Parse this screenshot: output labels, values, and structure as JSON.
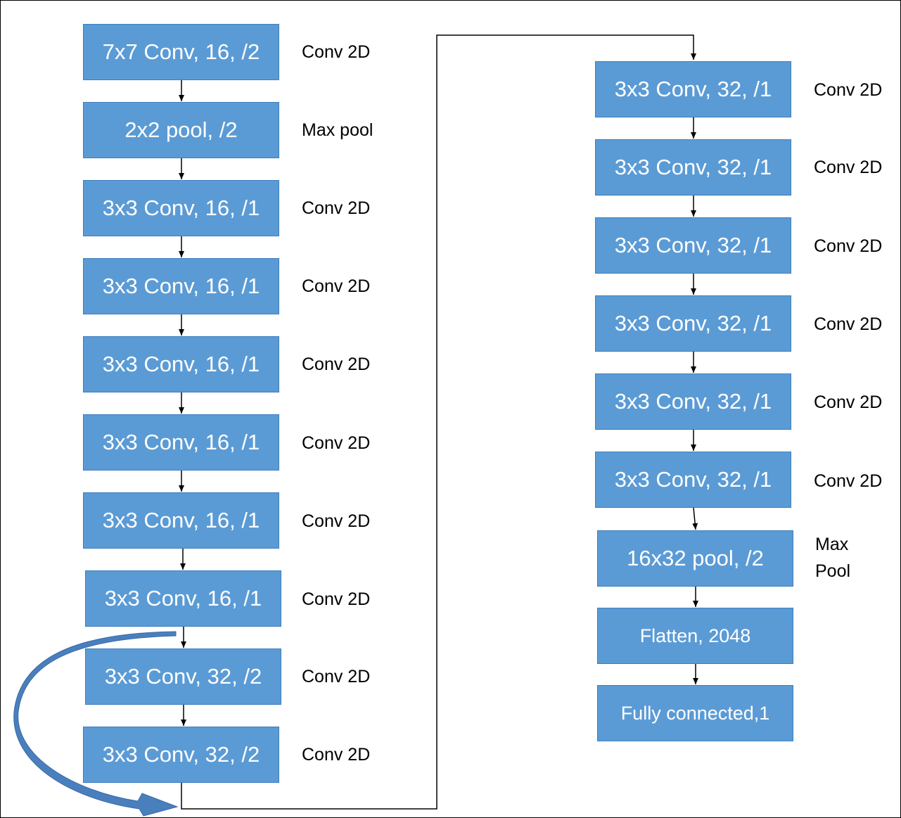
{
  "colors": {
    "block_fill": "#5b9bd5",
    "block_border": "#3d7dbf",
    "text_on_block": "#ffffff",
    "connector": "#000000",
    "skip_arrow": "#4a7fbd"
  },
  "left_column": [
    {
      "label": "7x7 Conv, 16, /2",
      "op": "Conv 2D"
    },
    {
      "label": "2x2 pool, /2",
      "op": "Max pool"
    },
    {
      "label": "3x3 Conv, 16, /1",
      "op": "Conv 2D"
    },
    {
      "label": "3x3 Conv, 16, /1",
      "op": "Conv 2D"
    },
    {
      "label": "3x3 Conv, 16, /1",
      "op": "Conv 2D"
    },
    {
      "label": "3x3 Conv, 16, /1",
      "op": "Conv 2D"
    },
    {
      "label": "3x3 Conv, 16, /1",
      "op": "Conv 2D"
    },
    {
      "label": "3x3 Conv, 16, /1",
      "op": "Conv 2D"
    },
    {
      "label": "3x3 Conv, 32, /2",
      "op": "Conv 2D"
    },
    {
      "label": "3x3 Conv, 32, /2",
      "op": "Conv 2D"
    }
  ],
  "right_column": [
    {
      "label": "3x3 Conv, 32, /1",
      "op": "Conv 2D"
    },
    {
      "label": "3x3 Conv, 32, /1",
      "op": "Conv 2D"
    },
    {
      "label": "3x3 Conv, 32, /1",
      "op": "Conv 2D"
    },
    {
      "label": "3x3 Conv, 32, /1",
      "op": "Conv 2D"
    },
    {
      "label": "3x3 Conv, 32, /1",
      "op": "Conv 2D"
    },
    {
      "label": "3x3 Conv, 32, /1",
      "op": "Conv 2D"
    },
    {
      "label": "16x32 pool, /2",
      "op_line1": "Max",
      "op_line2": "Pool"
    },
    {
      "label": "Flatten, 2048"
    },
    {
      "label": "Fully connected,1"
    }
  ]
}
